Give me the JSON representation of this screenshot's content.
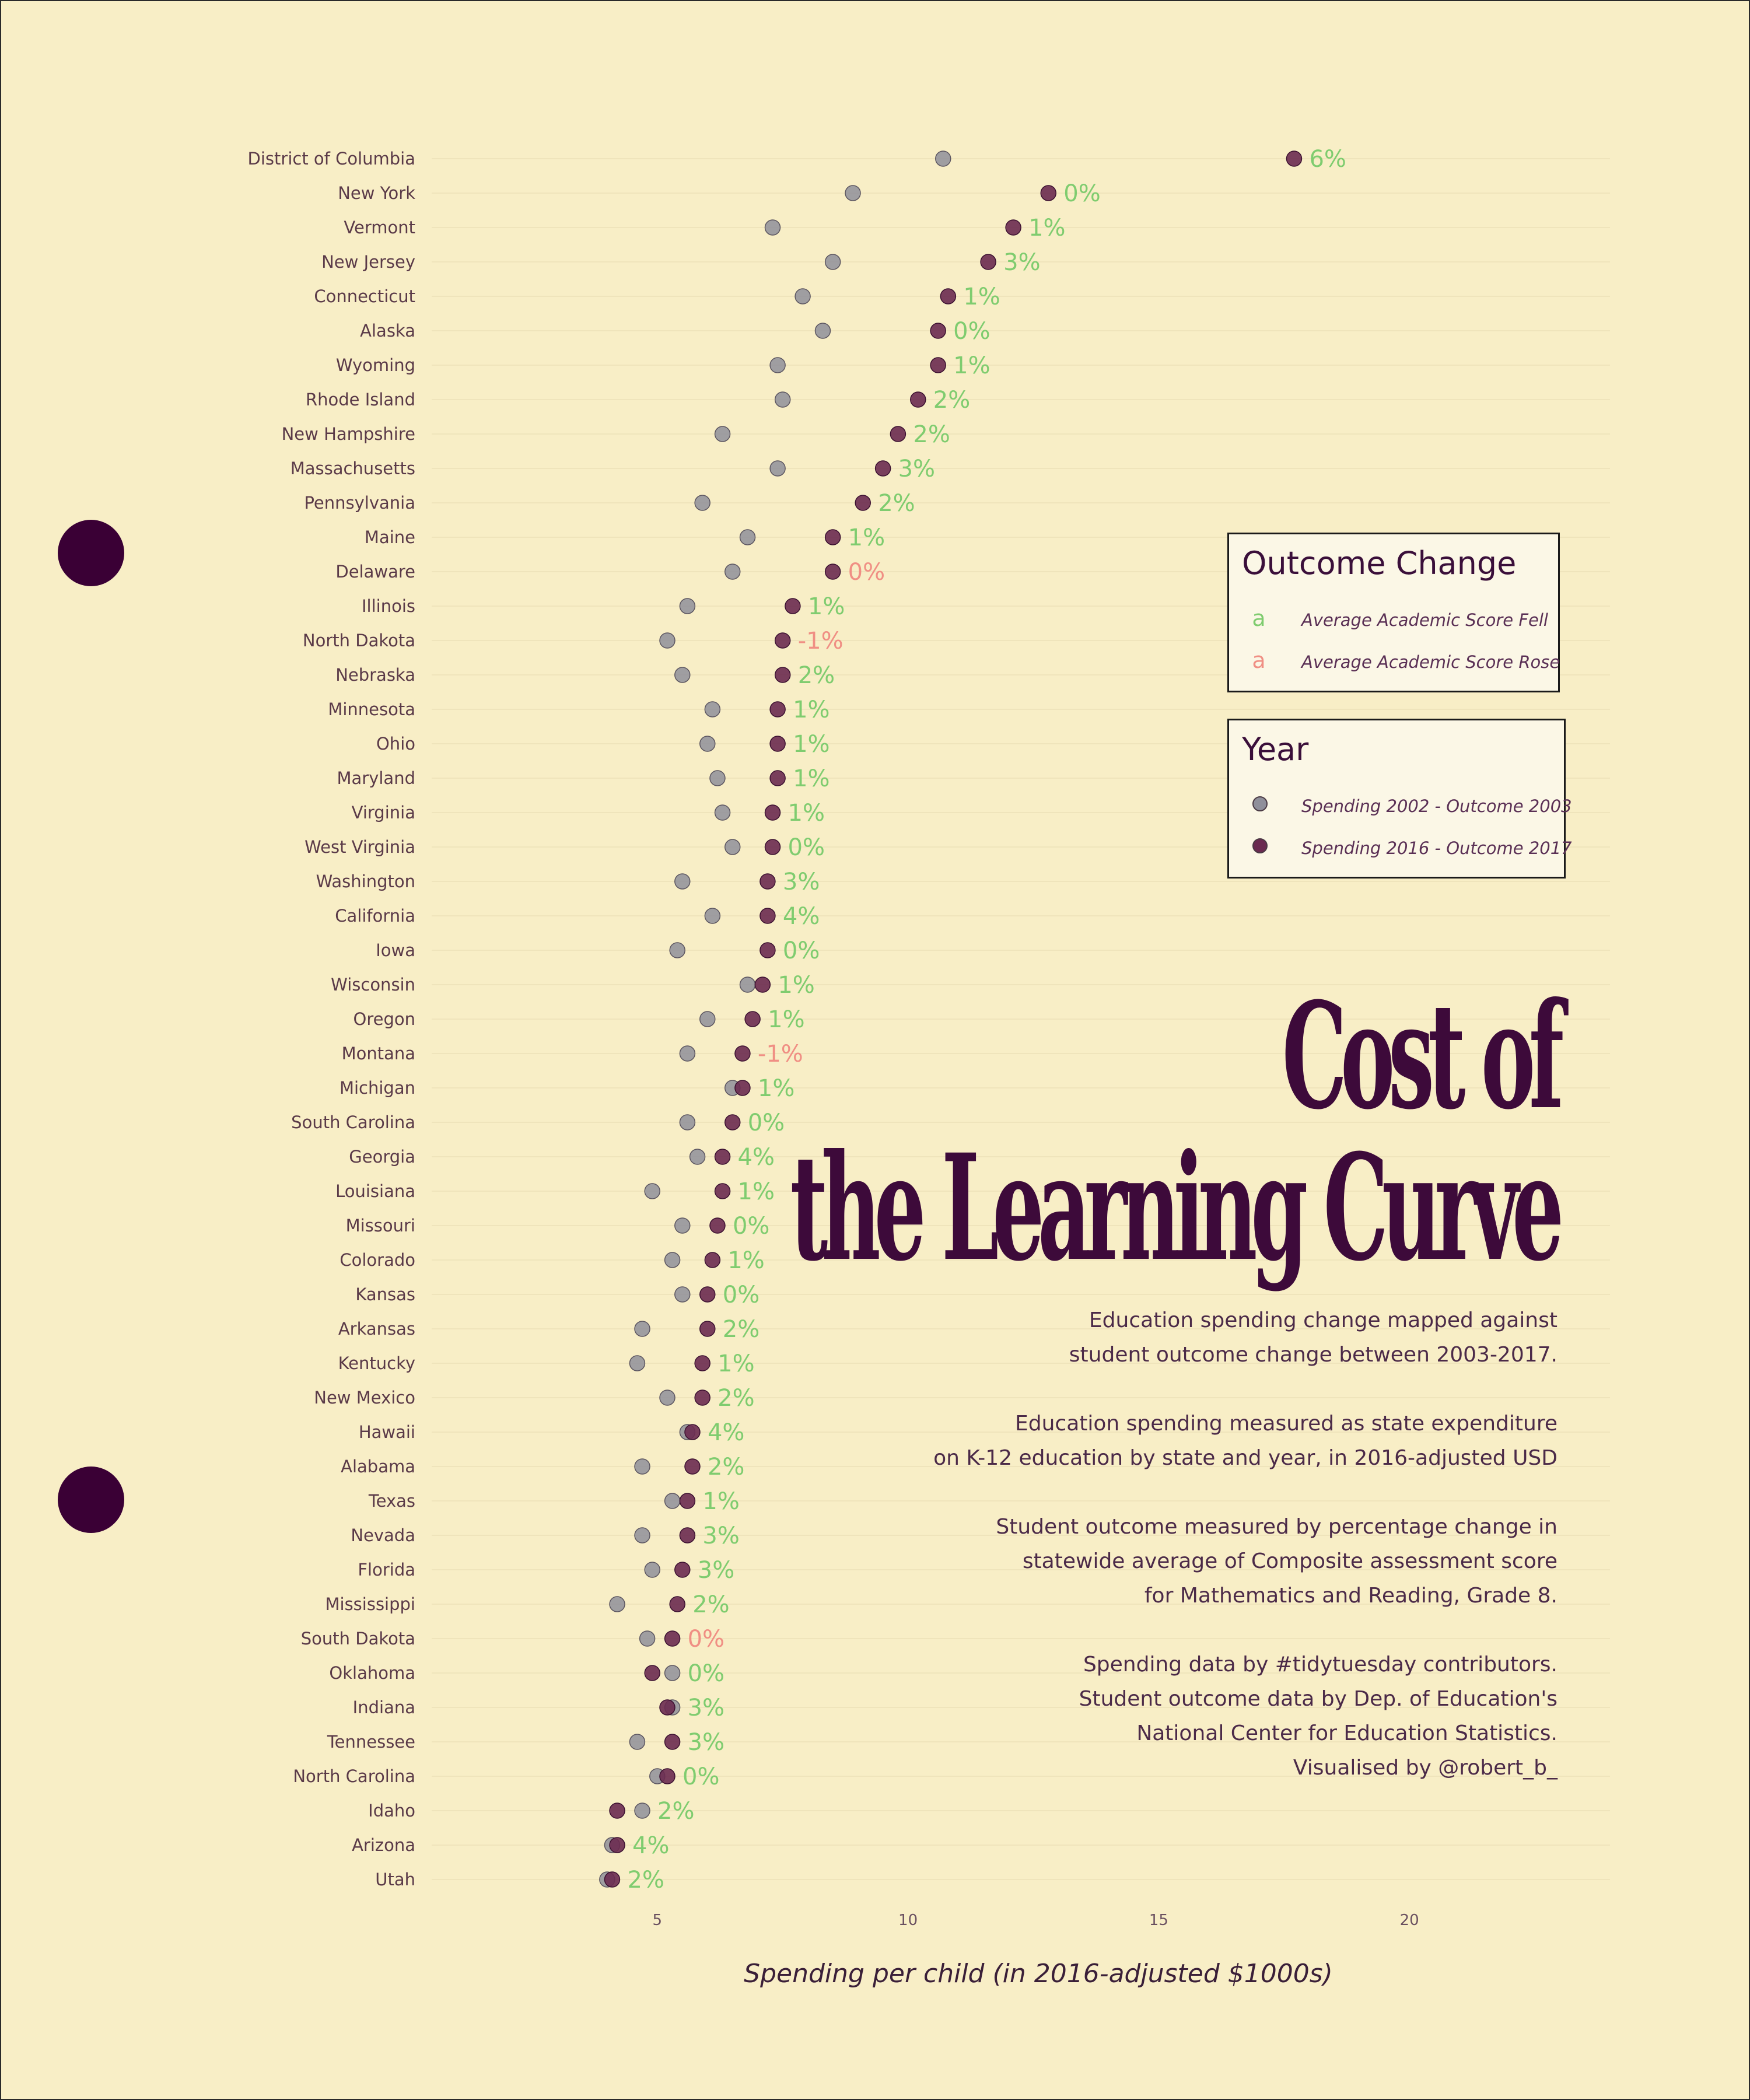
{
  "chart_data": {
    "type": "dot",
    "title_lines": [
      "Cost of",
      "the Learning Curve"
    ],
    "subtitle_paragraphs": [
      "Education spending change mapped against\nstudent outcome change between 2003-2017.",
      "Education spending measured as state expenditure\non K-12 education by state and year, in 2016-adjusted USD",
      "Student outcome measured by percentage change in\nstatewide average of Composite assessment score\nfor Mathematics and Reading, Grade 8.",
      "Spending data by #tidytuesday contributors.\nStudent outcome data by Dep. of Education's\nNational Center for Education Statistics.\nVisualised by @robert_b_"
    ],
    "xlabel": "Spending per child (in 2016-adjusted $1000s)",
    "xlim": [
      0.5,
      24
    ],
    "xticks": [
      5,
      10,
      15,
      20
    ],
    "legend_outcome": {
      "title": "Outcome Change",
      "items": [
        {
          "key": "a",
          "label": "Average Academic Score Fell",
          "color": "#7fcc6f"
        },
        {
          "key": "a",
          "label": "Average Academic Score Rose",
          "color": "#f08f84"
        }
      ]
    },
    "legend_year": {
      "title": "Year",
      "items": [
        {
          "label": "Spending 2002 - Outcome 2003",
          "color": "#8f8f9a"
        },
        {
          "label": "Spending 2016 - Outcome 2017",
          "color": "#6a2a50"
        }
      ]
    },
    "colors": {
      "fell": "#7fcc6f",
      "rose": "#f08f84",
      "year2002": "#8f8f9a",
      "year2016": "#6a2a50",
      "accent": "#3d0a3a"
    },
    "states": [
      {
        "name": "District of Columbia",
        "s2002": 10.7,
        "s2016": 17.7,
        "change": "6%",
        "fell": true
      },
      {
        "name": "New York",
        "s2002": 8.9,
        "s2016": 12.8,
        "change": "0%",
        "fell": true
      },
      {
        "name": "Vermont",
        "s2002": 7.3,
        "s2016": 12.1,
        "change": "1%",
        "fell": true
      },
      {
        "name": "New Jersey",
        "s2002": 8.5,
        "s2016": 11.6,
        "change": "3%",
        "fell": true
      },
      {
        "name": "Connecticut",
        "s2002": 7.9,
        "s2016": 10.8,
        "change": "1%",
        "fell": true
      },
      {
        "name": "Alaska",
        "s2002": 8.3,
        "s2016": 10.6,
        "change": "0%",
        "fell": true
      },
      {
        "name": "Wyoming",
        "s2002": 7.4,
        "s2016": 10.6,
        "change": "1%",
        "fell": true
      },
      {
        "name": "Rhode Island",
        "s2002": 7.5,
        "s2016": 10.2,
        "change": "2%",
        "fell": true
      },
      {
        "name": "New Hampshire",
        "s2002": 6.3,
        "s2016": 9.8,
        "change": "2%",
        "fell": true
      },
      {
        "name": "Massachusetts",
        "s2002": 7.4,
        "s2016": 9.5,
        "change": "3%",
        "fell": true
      },
      {
        "name": "Pennsylvania",
        "s2002": 5.9,
        "s2016": 9.1,
        "change": "2%",
        "fell": true
      },
      {
        "name": "Maine",
        "s2002": 6.8,
        "s2016": 8.5,
        "change": "1%",
        "fell": true
      },
      {
        "name": "Delaware",
        "s2002": 6.5,
        "s2016": 8.5,
        "change": "0%",
        "fell": false
      },
      {
        "name": "Illinois",
        "s2002": 5.6,
        "s2016": 7.7,
        "change": "1%",
        "fell": true
      },
      {
        "name": "North Dakota",
        "s2002": 5.2,
        "s2016": 7.5,
        "change": "-1%",
        "fell": false
      },
      {
        "name": "Nebraska",
        "s2002": 5.5,
        "s2016": 7.5,
        "change": "2%",
        "fell": true
      },
      {
        "name": "Minnesota",
        "s2002": 6.1,
        "s2016": 7.4,
        "change": "1%",
        "fell": true
      },
      {
        "name": "Ohio",
        "s2002": 6.0,
        "s2016": 7.4,
        "change": "1%",
        "fell": true
      },
      {
        "name": "Maryland",
        "s2002": 6.2,
        "s2016": 7.4,
        "change": "1%",
        "fell": true
      },
      {
        "name": "Virginia",
        "s2002": 6.3,
        "s2016": 7.3,
        "change": "1%",
        "fell": true
      },
      {
        "name": "West Virginia",
        "s2002": 6.5,
        "s2016": 7.3,
        "change": "0%",
        "fell": true
      },
      {
        "name": "Washington",
        "s2002": 5.5,
        "s2016": 7.2,
        "change": "3%",
        "fell": true
      },
      {
        "name": "California",
        "s2002": 6.1,
        "s2016": 7.2,
        "change": "4%",
        "fell": true
      },
      {
        "name": "Iowa",
        "s2002": 5.4,
        "s2016": 7.2,
        "change": "0%",
        "fell": true
      },
      {
        "name": "Wisconsin",
        "s2002": 6.8,
        "s2016": 7.1,
        "change": "1%",
        "fell": true
      },
      {
        "name": "Oregon",
        "s2002": 6.0,
        "s2016": 6.9,
        "change": "1%",
        "fell": true
      },
      {
        "name": "Montana",
        "s2002": 5.6,
        "s2016": 6.7,
        "change": "-1%",
        "fell": false
      },
      {
        "name": "Michigan",
        "s2002": 6.5,
        "s2016": 6.7,
        "change": "1%",
        "fell": true
      },
      {
        "name": "South Carolina",
        "s2002": 5.6,
        "s2016": 6.5,
        "change": "0%",
        "fell": true
      },
      {
        "name": "Georgia",
        "s2002": 5.8,
        "s2016": 6.3,
        "change": "4%",
        "fell": true
      },
      {
        "name": "Louisiana",
        "s2002": 4.9,
        "s2016": 6.3,
        "change": "1%",
        "fell": true
      },
      {
        "name": "Missouri",
        "s2002": 5.5,
        "s2016": 6.2,
        "change": "0%",
        "fell": true
      },
      {
        "name": "Colorado",
        "s2002": 5.3,
        "s2016": 6.1,
        "change": "1%",
        "fell": true
      },
      {
        "name": "Kansas",
        "s2002": 5.5,
        "s2016": 6.0,
        "change": "0%",
        "fell": true
      },
      {
        "name": "Arkansas",
        "s2002": 4.7,
        "s2016": 6.0,
        "change": "2%",
        "fell": true
      },
      {
        "name": "Kentucky",
        "s2002": 4.6,
        "s2016": 5.9,
        "change": "1%",
        "fell": true
      },
      {
        "name": "New Mexico",
        "s2002": 5.2,
        "s2016": 5.9,
        "change": "2%",
        "fell": true
      },
      {
        "name": "Hawaii",
        "s2002": 5.6,
        "s2016": 5.7,
        "change": "4%",
        "fell": true
      },
      {
        "name": "Alabama",
        "s2002": 4.7,
        "s2016": 5.7,
        "change": "2%",
        "fell": true
      },
      {
        "name": "Texas",
        "s2002": 5.3,
        "s2016": 5.6,
        "change": "1%",
        "fell": true
      },
      {
        "name": "Nevada",
        "s2002": 4.7,
        "s2016": 5.6,
        "change": "3%",
        "fell": true
      },
      {
        "name": "Florida",
        "s2002": 4.9,
        "s2016": 5.5,
        "change": "3%",
        "fell": true
      },
      {
        "name": "Mississippi",
        "s2002": 4.2,
        "s2016": 5.4,
        "change": "2%",
        "fell": true
      },
      {
        "name": "South Dakota",
        "s2002": 4.8,
        "s2016": 5.3,
        "change": "0%",
        "fell": false
      },
      {
        "name": "Oklahoma",
        "s2002": 5.3,
        "s2016": 4.9,
        "change": "0%",
        "fell": true
      },
      {
        "name": "Indiana",
        "s2002": 5.3,
        "s2016": 5.2,
        "change": "3%",
        "fell": true
      },
      {
        "name": "Tennessee",
        "s2002": 4.6,
        "s2016": 5.3,
        "change": "3%",
        "fell": true
      },
      {
        "name": "North Carolina",
        "s2002": 5.0,
        "s2016": 5.2,
        "change": "0%",
        "fell": true
      },
      {
        "name": "Idaho",
        "s2002": 4.7,
        "s2016": 4.2,
        "change": "2%",
        "fell": true
      },
      {
        "name": "Arizona",
        "s2002": 4.1,
        "s2016": 4.2,
        "change": "4%",
        "fell": true
      },
      {
        "name": "Utah",
        "s2002": 4.0,
        "s2016": 4.1,
        "change": "2%",
        "fell": true
      }
    ]
  }
}
